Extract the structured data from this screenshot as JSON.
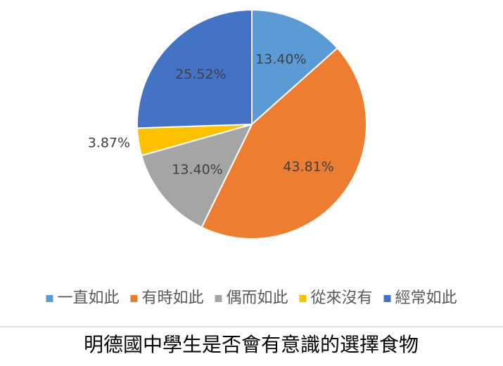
{
  "chart_data": {
    "type": "pie",
    "title": "明德國中學生是否會有意識的選擇食物",
    "categories": [
      "一直如此",
      "有時如此",
      "偶而如此",
      "從來沒有",
      "經常如此"
    ],
    "values": [
      13.4,
      43.81,
      13.4,
      3.87,
      25.52
    ],
    "value_labels": [
      "13.40%",
      "43.81%",
      "13.40%",
      "3.87%",
      "25.52%"
    ],
    "colors": [
      "#5b9bd5",
      "#ed7d31",
      "#a5a5a5",
      "#ffc000",
      "#4472c4"
    ],
    "legend": "bottom"
  }
}
